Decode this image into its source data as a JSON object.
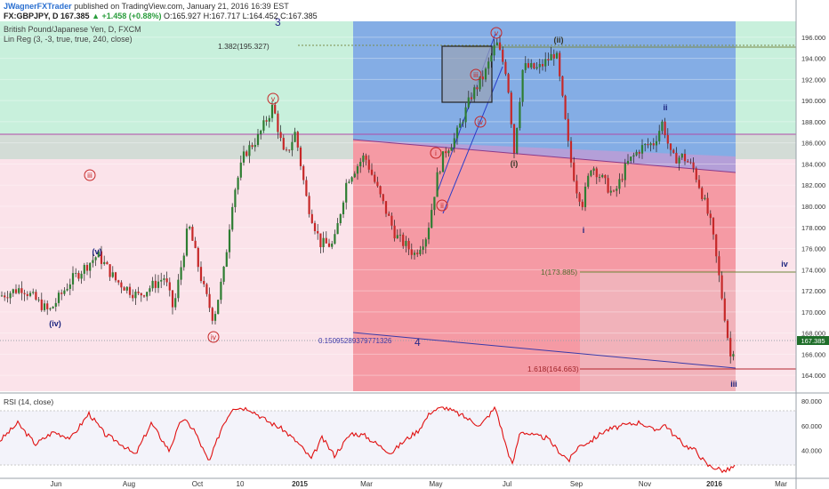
{
  "header": {
    "user": "JWagnerFXTrader",
    "published": " published on TradingView.com, January 21, 2016 16:39 EST",
    "ohlc_line_prefix": "FX:GBPJPY, D  167.385 ",
    "change": "▲ +1.458 (+0.88%)",
    "ohlc_values": " O:165.927  H:167.717  L:164.452  C:167.385",
    "instrument": "British Pound/Japanese Yen, D, FXCM",
    "indicator": "Lin Reg (3, -3, true, true, 240, close)"
  },
  "rsi_title": "RSI (14, close)",
  "colors": {
    "bull": "#2e7d32",
    "bear": "#c62828",
    "rsi": "#e01010",
    "zone_green": "#c8f0dc",
    "zone_blue": "#6f9fe0",
    "zone_red": "#f5a0a8",
    "zone_pink": "#fbe3ea",
    "wave_red": "#c62828",
    "wave_navy": "#1a237e",
    "wave_olive": "#555533"
  },
  "chart_data": [
    {
      "type": "candlestick",
      "title": "British Pound/Japanese Yen, D, FXCM",
      "ylim": [
        162.5,
        197.5
      ],
      "y_ticks": [
        164.0,
        166.0,
        168.0,
        170.0,
        172.0,
        174.0,
        176.0,
        178.0,
        180.0,
        182.0,
        184.0,
        186.0,
        188.0,
        190.0,
        192.0,
        194.0,
        196.0
      ],
      "x_labels": [
        "Jun",
        "Aug",
        "Oct",
        "10",
        "2015",
        "Mar",
        "May",
        "Jul",
        "Sep",
        "Nov",
        "2016",
        "Mar"
      ],
      "last_price_label": "167.385",
      "close_anchors": [
        [
          0,
          171.5
        ],
        [
          25,
          172.3
        ],
        [
          55,
          170.0
        ],
        [
          80,
          173.0
        ],
        [
          110,
          175.4
        ],
        [
          130,
          173.0
        ],
        [
          155,
          171.5
        ],
        [
          185,
          173.3
        ],
        [
          195,
          170.2
        ],
        [
          212,
          178.3
        ],
        [
          228,
          172.5
        ],
        [
          240,
          169.3
        ],
        [
          252,
          174.0
        ],
        [
          262,
          181.0
        ],
        [
          275,
          185.0
        ],
        [
          290,
          186.5
        ],
        [
          307,
          189.5
        ],
        [
          320,
          184.5
        ],
        [
          332,
          187.0
        ],
        [
          345,
          180.5
        ],
        [
          360,
          176.5
        ],
        [
          375,
          176.3
        ],
        [
          390,
          182.5
        ],
        [
          410,
          184.8
        ],
        [
          428,
          180.8
        ],
        [
          445,
          177.2
        ],
        [
          466,
          175.5
        ],
        [
          480,
          177.3
        ],
        [
          492,
          183.0
        ],
        [
          500,
          185.2
        ],
        [
          512,
          186.5
        ],
        [
          530,
          190.5
        ],
        [
          545,
          192.5
        ],
        [
          558,
          195.5
        ],
        [
          570,
          192.5
        ],
        [
          578,
          185.2
        ],
        [
          588,
          193.2
        ],
        [
          605,
          193.0
        ],
        [
          625,
          194.6
        ],
        [
          634,
          189.0
        ],
        [
          640,
          185.0
        ],
        [
          648,
          181.7
        ],
        [
          655,
          180.3
        ],
        [
          665,
          184.0
        ],
        [
          680,
          182.2
        ],
        [
          690,
          181.0
        ],
        [
          705,
          184.0
        ],
        [
          720,
          185.5
        ],
        [
          735,
          186.0
        ],
        [
          745,
          188.0
        ],
        [
          755,
          184.5
        ],
        [
          768,
          184.7
        ],
        [
          780,
          183.5
        ],
        [
          790,
          181.0
        ],
        [
          800,
          178.0
        ],
        [
          808,
          173.5
        ],
        [
          815,
          169.5
        ],
        [
          822,
          165.3
        ],
        [
          826,
          167.4
        ]
      ],
      "rsi": {
        "ylim": [
          18,
          83
        ],
        "y_ticks": [
          40.0,
          60.0,
          80.0
        ],
        "bands": [
          30,
          70
        ],
        "anchors": [
          [
            0,
            48
          ],
          [
            20,
            62
          ],
          [
            40,
            45
          ],
          [
            60,
            55
          ],
          [
            80,
            50
          ],
          [
            100,
            70
          ],
          [
            118,
            53
          ],
          [
            135,
            46
          ],
          [
            152,
            36
          ],
          [
            170,
            62
          ],
          [
            190,
            40
          ],
          [
            205,
            66
          ],
          [
            218,
            57
          ],
          [
            235,
            30
          ],
          [
            250,
            60
          ],
          [
            262,
            75
          ],
          [
            280,
            74
          ],
          [
            300,
            64
          ],
          [
            318,
            57
          ],
          [
            335,
            46
          ],
          [
            350,
            33
          ],
          [
            362,
            50
          ],
          [
            376,
            36
          ],
          [
            395,
            54
          ],
          [
            410,
            52
          ],
          [
            428,
            43
          ],
          [
            440,
            38
          ],
          [
            455,
            48
          ],
          [
            470,
            56
          ],
          [
            485,
            72
          ],
          [
            500,
            75
          ],
          [
            520,
            68
          ],
          [
            540,
            60
          ],
          [
            557,
            75
          ],
          [
            568,
            46
          ],
          [
            576,
            28
          ],
          [
            585,
            56
          ],
          [
            600,
            52
          ],
          [
            615,
            50
          ],
          [
            630,
            38
          ],
          [
            640,
            32
          ],
          [
            650,
            43
          ],
          [
            665,
            48
          ],
          [
            680,
            56
          ],
          [
            700,
            60
          ],
          [
            720,
            63
          ],
          [
            735,
            56
          ],
          [
            748,
            61
          ],
          [
            758,
            52
          ],
          [
            770,
            44
          ],
          [
            782,
            40
          ],
          [
            795,
            28
          ],
          [
            808,
            25
          ],
          [
            815,
            23
          ],
          [
            826,
            27
          ]
        ]
      }
    }
  ],
  "levels": {
    "fib_1382": "1.382(195.327)",
    "fib_1": "1(173.885)",
    "fib_1618": "1.618(164.663)",
    "channel_label": "0.15095289379771326",
    "num_3": "3",
    "num_4": "4"
  },
  "waves": {
    "v_top": "v",
    "iii_left": "iii",
    "iv_bottom": "iv",
    "v_blue": "(v)",
    "iv_blue": "(iv)",
    "i_red": "i",
    "ii_red": "ii",
    "iii_red": "iii",
    "iv_red": "iv",
    "v_red2": "v",
    "i_paren": "(i)",
    "ii_paren": "(ii)",
    "i_navy": "i",
    "ii_navy": "ii",
    "iii_navy": "iii",
    "iv_navy": "iv"
  }
}
